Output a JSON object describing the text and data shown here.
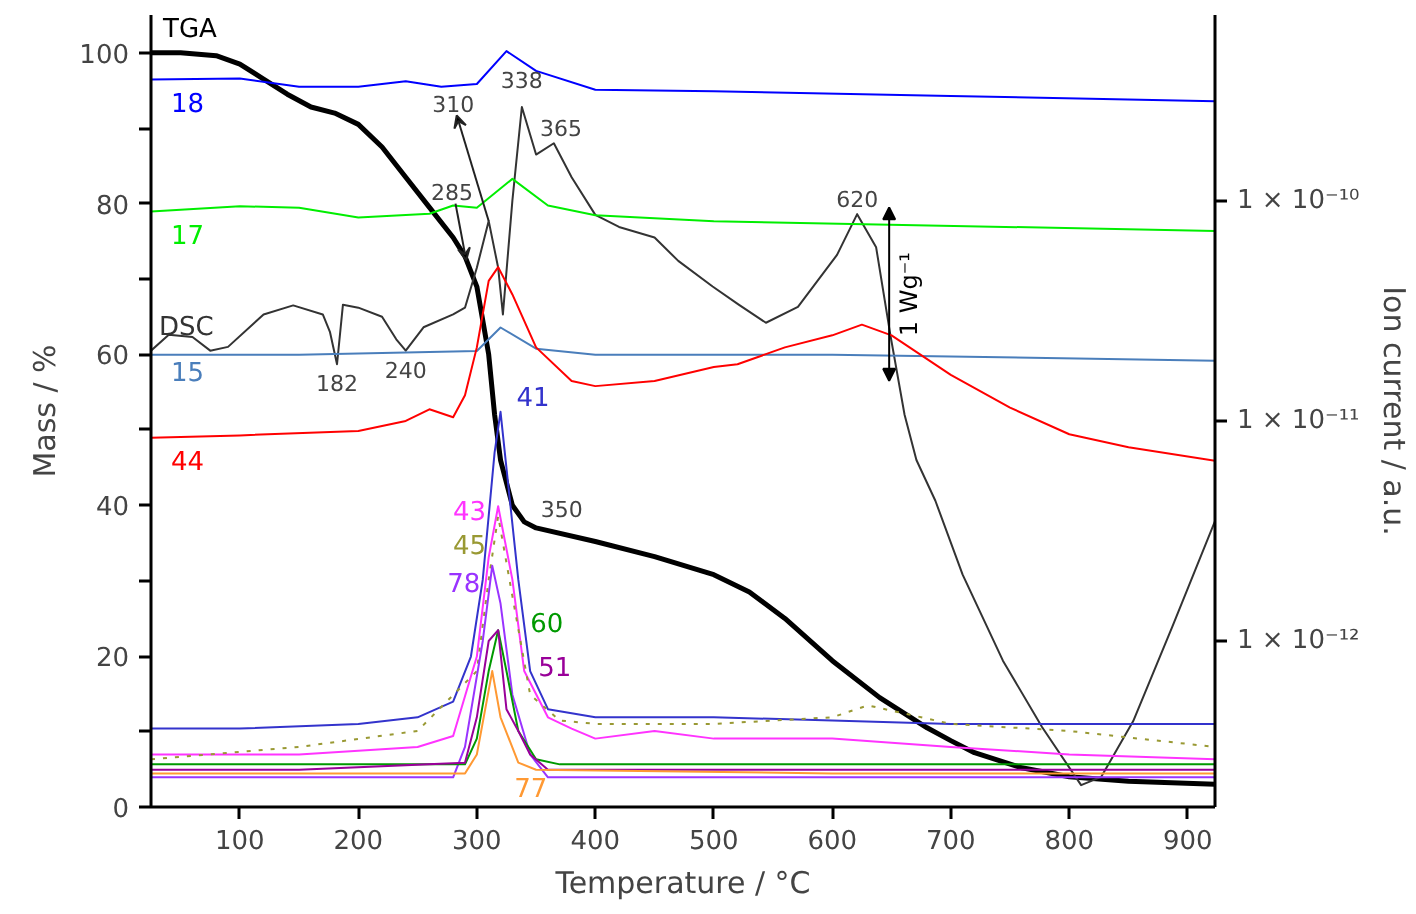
{
  "chart_data": {
    "type": "line",
    "xlabel": "Temperature / °C",
    "ylabel": "Mass / %",
    "y2label": "Ion current / a.u.",
    "xlim": [
      25,
      923
    ],
    "xticks": [
      100,
      200,
      300,
      400,
      500,
      600,
      700,
      800,
      900
    ],
    "ylim": [
      0,
      105
    ],
    "yticks": [
      0,
      {
        "value": 10,
        "label": null
      },
      20,
      {
        "value": 30,
        "label": null
      },
      40,
      {
        "value": 50,
        "label": null
      },
      60,
      {
        "value": 70,
        "label": null
      },
      80,
      {
        "value": 90,
        "label": null
      },
      100
    ],
    "y2lim": [
      1.76e-13,
      7e-10
    ],
    "y2ticks": [
      {
        "value": 1e-12,
        "label": "1 × 10⁻¹²"
      },
      {
        "value": 1e-11,
        "label": "1 × 10⁻¹¹"
      },
      {
        "value": 1e-10,
        "label": "1 × 10⁻¹⁰"
      }
    ],
    "log": "y2",
    "annotations": [
      {
        "text": "310",
        "x": 310,
        "y": 77.7
      },
      {
        "text": "338",
        "x": 338,
        "y": 92.8
      },
      {
        "text": "365",
        "x": 365,
        "y": 88
      },
      {
        "text": "285",
        "x": 291,
        "y": 72.5
      },
      {
        "text": "182",
        "x": 182,
        "y": 58.7
      },
      {
        "text": "240",
        "x": 240,
        "y": 60.5
      },
      {
        "text": "620",
        "x": 621,
        "y": 78.6
      },
      {
        "text": "350",
        "x": 350,
        "y": 37
      },
      "1 Wg⁻¹"
    ],
    "series": [
      {
        "name": "TGA",
        "color": "#000000",
        "x": [
          25,
          50,
          80,
          100,
          120,
          140,
          160,
          180,
          200,
          220,
          240,
          260,
          280,
          290,
          300,
          310,
          315,
          320,
          330,
          340,
          350,
          400,
          450,
          500,
          530,
          560,
          600,
          640,
          680,
          700,
          720,
          760,
          800,
          850,
          923
        ],
        "values": [
          100,
          100,
          99.6,
          98.5,
          96.5,
          94.5,
          92.8,
          92,
          90.5,
          87.5,
          83.5,
          79.5,
          75.5,
          73,
          69,
          60,
          52,
          46,
          40,
          37.8,
          37,
          35.2,
          33.2,
          30.8,
          28.5,
          25,
          19.4,
          14.5,
          10.5,
          8.8,
          7.2,
          5.2,
          4,
          3.4,
          3
        ]
      },
      {
        "name": "DSC",
        "color": "#333333",
        "x": [
          25,
          40,
          60,
          75,
          90,
          120,
          145,
          170,
          176,
          182,
          187,
          200,
          220,
          232,
          240,
          255,
          280,
          290,
          300,
          310,
          318,
          322,
          330,
          338,
          350,
          365,
          380,
          400,
          420,
          450,
          470,
          499,
          521,
          544,
          571,
          604,
          621,
          637,
          649,
          661,
          671,
          687,
          710,
          744,
          777,
          810,
          827,
          854,
          887,
          923
        ],
        "values": [
          60.5,
          62.6,
          62.3,
          60.5,
          61,
          65.3,
          66.5,
          65.3,
          63,
          58.7,
          66.6,
          66.2,
          65,
          62,
          60.5,
          63.6,
          65.3,
          66.2,
          71.5,
          77.7,
          71.5,
          65.3,
          80.4,
          92.8,
          86.5,
          88,
          83.5,
          78.5,
          76.9,
          75.5,
          72.4,
          69,
          66.6,
          64.2,
          66.3,
          73.2,
          78.6,
          74.2,
          62.6,
          52,
          46,
          40.6,
          30.8,
          19.4,
          10.6,
          2.9,
          4,
          11.4,
          23.9,
          37.9
        ]
      },
      {
        "name": "18",
        "color": "#0000ff",
        "axis": "y2",
        "x": [
          25,
          100,
          150,
          200,
          240,
          270,
          300,
          325,
          350,
          400,
          500,
          700,
          923
        ],
        "values": [
          3.56e-10,
          3.6e-10,
          3.3e-10,
          3.3e-10,
          3.5e-10,
          3.3e-10,
          3.4e-10,
          4.8e-10,
          3.9e-10,
          3.2e-10,
          3.15e-10,
          3e-10,
          2.84e-10
        ]
      },
      {
        "name": "17",
        "color": "#00ee00",
        "axis": "y2",
        "x": [
          25,
          100,
          150,
          200,
          260,
          280,
          300,
          330,
          360,
          400,
          500,
          923
        ],
        "values": [
          8.95e-11,
          9.46e-11,
          9.31e-11,
          8.41e-11,
          8.75e-11,
          9.54e-11,
          9.31e-11,
          1.26e-10,
          9.54e-11,
          8.61e-11,
          8.09e-11,
          7.3e-11
        ]
      },
      {
        "name": "15",
        "color": "#4a7ebb",
        "axis": "y2",
        "x": [
          25,
          150,
          300,
          320,
          350,
          400,
          600,
          923
        ],
        "values": [
          2e-11,
          2e-11,
          2.08e-11,
          2.66e-11,
          2.13e-11,
          2e-11,
          2e-11,
          1.88e-11
        ]
      },
      {
        "name": "44",
        "color": "#ff0000",
        "axis": "y2",
        "x": [
          25,
          100,
          200,
          240,
          260,
          280,
          290,
          300,
          310,
          318,
          330,
          350,
          380,
          400,
          450,
          500,
          520,
          560,
          600,
          625,
          650,
          700,
          750,
          800,
          850,
          923
        ],
        "values": [
          8.4e-12,
          8.6e-12,
          9e-12,
          1e-11,
          1.13e-11,
          1.04e-11,
          1.31e-11,
          2.16e-11,
          4.33e-11,
          5e-11,
          3.76e-11,
          2.16e-11,
          1.52e-11,
          1.44e-11,
          1.52e-11,
          1.76e-11,
          1.81e-11,
          2.16e-11,
          2.45e-11,
          2.74e-11,
          2.45e-11,
          1.62e-11,
          1.15e-11,
          8.7e-12,
          7.6e-12,
          6.6e-12
        ]
      },
      {
        "name": "41",
        "color": "#3333cc",
        "axis": "y2",
        "x": [
          25,
          100,
          200,
          250,
          280,
          295,
          305,
          315,
          320,
          325,
          335,
          345,
          360,
          400,
          500,
          600,
          700,
          800,
          923
        ],
        "values": [
          4e-13,
          4e-13,
          4.2e-13,
          4.5e-13,
          5.3e-13,
          8.5e-13,
          1.9e-12,
          7.2e-12,
          1.1e-11,
          6.1e-12,
          1.9e-12,
          7.3e-13,
          4.9e-13,
          4.5e-13,
          4.5e-13,
          4.35e-13,
          4.2e-13,
          4.2e-13,
          4.2e-13
        ]
      },
      {
        "name": "43",
        "color": "#ff33ff",
        "axis": "y2",
        "x": [
          25,
          150,
          250,
          280,
          300,
          310,
          318,
          330,
          340,
          360,
          380,
          400,
          450,
          500,
          600,
          700,
          800,
          923
        ],
        "values": [
          3.05e-13,
          3.05e-13,
          3.3e-13,
          3.7e-13,
          8.5e-13,
          2.4e-12,
          4.1e-12,
          1.9e-12,
          7.3e-13,
          4.5e-13,
          4e-13,
          3.6e-13,
          3.9e-13,
          3.6e-13,
          3.6e-13,
          3.3e-13,
          3.05e-13,
          2.9e-13
        ]
      },
      {
        "name": "45",
        "color": "#999933",
        "axis": "y2",
        "line_style": "dotted",
        "x": [
          25,
          150,
          250,
          300,
          310,
          318,
          330,
          345,
          370,
          400,
          500,
          600,
          630,
          700,
          800,
          923
        ],
        "values": [
          2.9e-13,
          3.3e-13,
          3.9e-13,
          7.3e-13,
          1.9e-12,
          3.7e-12,
          1.6e-12,
          5.7e-13,
          4.35e-13,
          4.2e-13,
          4.2e-13,
          4.5e-13,
          5.1e-13,
          4.2e-13,
          3.9e-13,
          3.3e-13
        ]
      },
      {
        "name": "78",
        "color": "#9933ff",
        "axis": "y2",
        "x": [
          25,
          150,
          280,
          290,
          305,
          313,
          320,
          330,
          345,
          360,
          500,
          700,
          923
        ],
        "values": [
          2.4e-13,
          2.4e-13,
          2.4e-13,
          3.3e-13,
          1e-12,
          2.2e-12,
          1.48e-12,
          5.7e-13,
          3.05e-13,
          2.4e-13,
          2.4e-13,
          2.4e-13,
          2.4e-13
        ]
      },
      {
        "name": "60",
        "color": "#009900",
        "axis": "y2",
        "x": [
          25,
          150,
          290,
          300,
          310,
          318,
          325,
          335,
          350,
          370,
          600,
          923
        ],
        "values": [
          2.75e-13,
          2.75e-13,
          2.75e-13,
          3.6e-13,
          7.3e-13,
          1.12e-12,
          7.3e-13,
          3.9e-13,
          2.9e-13,
          2.75e-13,
          2.75e-13,
          2.75e-13
        ]
      },
      {
        "name": "51",
        "color": "#990099",
        "axis": "y2",
        "x": [
          25,
          150,
          290,
          300,
          310,
          318,
          325,
          335,
          345,
          360,
          600,
          923
        ],
        "values": [
          2.6e-13,
          2.6e-13,
          2.8e-13,
          4.5e-13,
          1e-12,
          1.12e-12,
          4.9e-13,
          3.9e-13,
          3.05e-13,
          2.6e-13,
          2.6e-13,
          2.6e-13
        ]
      },
      {
        "name": "77",
        "color": "#ff9933",
        "axis": "y2",
        "x": [
          25,
          150,
          290,
          300,
          313,
          320,
          335,
          350,
          600,
          923
        ],
        "values": [
          2.5e-13,
          2.5e-13,
          2.5e-13,
          3.05e-13,
          7.3e-13,
          4.5e-13,
          2.8e-13,
          2.6e-13,
          2.5e-13,
          2.5e-13
        ]
      }
    ]
  }
}
